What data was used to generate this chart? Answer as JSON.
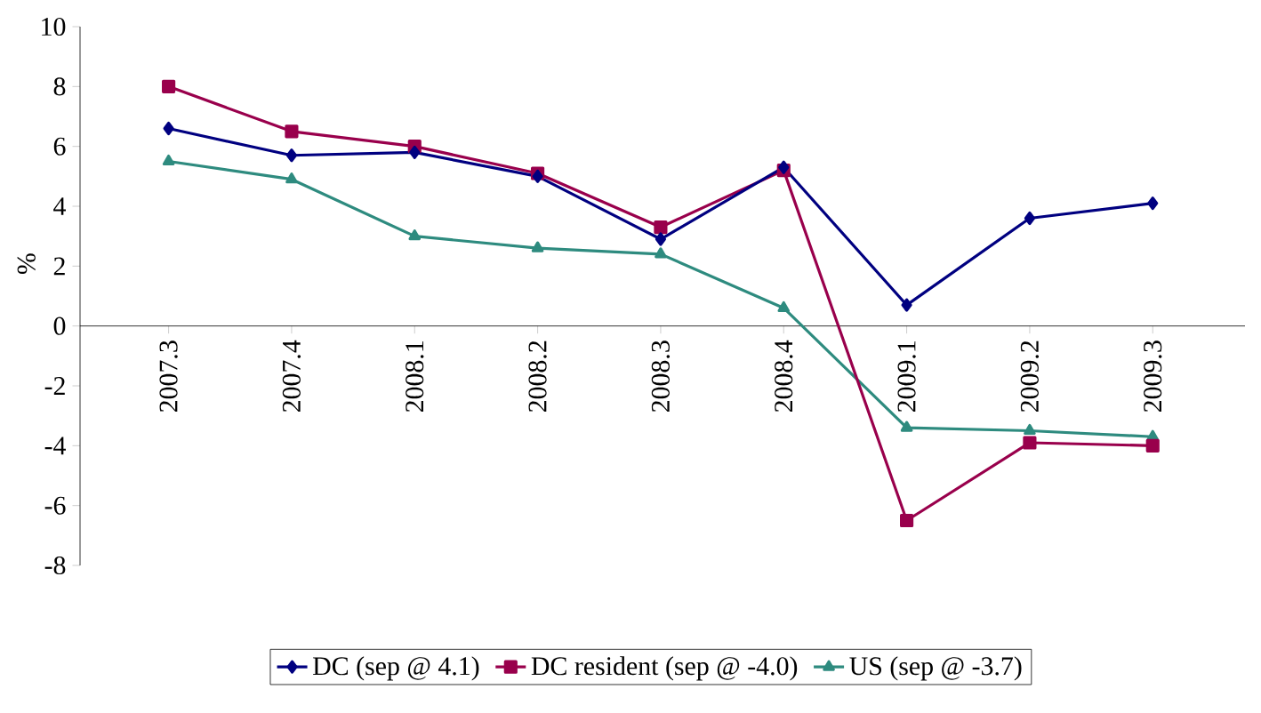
{
  "chart_data": {
    "type": "line",
    "ylabel": "%",
    "categories": [
      "2007.3",
      "2007.4",
      "2008.1",
      "2008.2",
      "2008.3",
      "2008.4",
      "2009.1",
      "2009.2",
      "2009.3"
    ],
    "ylim": [
      -8,
      10
    ],
    "yticks": [
      -8,
      -6,
      -4,
      -2,
      0,
      2,
      4,
      6,
      8,
      10
    ],
    "grid": false,
    "legend": "bottom",
    "series": [
      {
        "name": "DC (sep  @ 4.1)",
        "color": "#000080",
        "marker": "diamond",
        "values": [
          6.6,
          5.7,
          5.8,
          5.0,
          2.9,
          5.3,
          0.7,
          3.6,
          4.1
        ]
      },
      {
        "name": "DC resident (sep @ -4.0)",
        "color": "#99004c",
        "marker": "square",
        "values": [
          8.0,
          6.5,
          6.0,
          5.1,
          3.3,
          5.2,
          -6.5,
          -3.9,
          -4.0
        ]
      },
      {
        "name": "US (sep @ -3.7)",
        "color": "#2e8b7f",
        "marker": "triangle",
        "values": [
          5.5,
          4.9,
          3.0,
          2.6,
          2.4,
          0.6,
          -3.4,
          -3.5,
          -3.7
        ]
      }
    ]
  }
}
